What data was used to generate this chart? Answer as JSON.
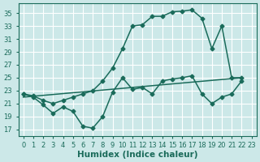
{
  "xlabel": "Humidex (Indice chaleur)",
  "xlim": [
    -0.5,
    23.5
  ],
  "ylim": [
    16,
    36.5
  ],
  "yticks": [
    17,
    19,
    21,
    23,
    25,
    27,
    29,
    31,
    33,
    35
  ],
  "xticks": [
    0,
    1,
    2,
    3,
    4,
    5,
    6,
    7,
    8,
    9,
    10,
    11,
    12,
    13,
    14,
    15,
    16,
    17,
    18,
    19,
    20,
    21,
    22,
    23
  ],
  "bg_color": "#cce8e8",
  "grid_color": "#ffffff",
  "line_color": "#1a6b5a",
  "line1_x": [
    0,
    1,
    2,
    3,
    4,
    5,
    6,
    7,
    8,
    9,
    10,
    11,
    12,
    13,
    14,
    15,
    16,
    17,
    18,
    19,
    20,
    21,
    22
  ],
  "line1_y": [
    22.5,
    22.2,
    21.5,
    21.0,
    21.5,
    22.0,
    22.5,
    23.0,
    24.5,
    26.5,
    29.5,
    33.0,
    33.2,
    34.5,
    34.5,
    35.2,
    35.3,
    35.5,
    34.2,
    29.5,
    33.0,
    25.0,
    25.0
  ],
  "line2_x": [
    0,
    1,
    2,
    3,
    4,
    5,
    6,
    7,
    8,
    9,
    10,
    11,
    12,
    13,
    14,
    15,
    16,
    17,
    18,
    19,
    20,
    21,
    22
  ],
  "line2_y": [
    22.5,
    22.0,
    20.8,
    19.5,
    20.5,
    19.8,
    17.5,
    17.2,
    19.0,
    22.8,
    25.0,
    23.2,
    23.5,
    22.5,
    24.5,
    24.8,
    25.0,
    25.3,
    22.5,
    21.0,
    22.0,
    22.5,
    24.5
  ],
  "line3_x": [
    0,
    22
  ],
  "line3_y": [
    22.0,
    25.0
  ],
  "marker": "D",
  "markersize": 2.5,
  "linewidth": 1.1,
  "tick_fontsize": 6.0,
  "xlabel_fontsize": 7.5
}
